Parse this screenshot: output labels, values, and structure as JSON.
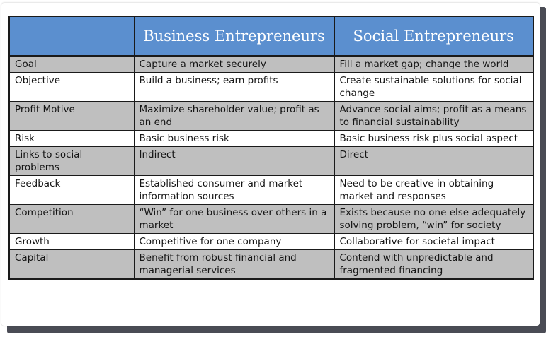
{
  "table": {
    "headers": [
      "",
      "Business Entrepreneurs",
      "Social Entrepreneurs"
    ],
    "rows": [
      {
        "aspect": "Goal",
        "business": "Capture a market securely",
        "social": "Fill a market gap; change the world"
      },
      {
        "aspect": "Objective",
        "business": "Build a business; earn profits",
        "social": "Create sustainable solutions for social change"
      },
      {
        "aspect": "Profit Motive",
        "business": "Maximize shareholder value; profit as an end",
        "social": "Advance social aims; profit as a means to financial sustainability"
      },
      {
        "aspect": "Risk",
        "business": "Basic business risk",
        "social": "Basic business risk plus social aspect"
      },
      {
        "aspect": "Links to social problems",
        "business": "Indirect",
        "social": "Direct"
      },
      {
        "aspect": "Feedback",
        "business": "Established consumer and market information sources",
        "social": "Need to be creative in obtaining market and responses"
      },
      {
        "aspect": "Competition",
        "business": "“Win” for one business over others in a market",
        "social": "Exists because no one else adequately solving problem, “win” for society"
      },
      {
        "aspect": "Growth",
        "business": "Competitive for one company",
        "social": "Collaborative for societal impact"
      },
      {
        "aspect": "Capital",
        "business": "Benefit from robust financial and managerial services",
        "social": "Contend with unpredictable and fragmented financing"
      }
    ]
  },
  "colors": {
    "header_bg": "#5b8fcf",
    "header_text": "#ffffff",
    "row_shaded": "#bfbfbf",
    "row_plain": "#ffffff",
    "border": "#1a1a1a"
  }
}
